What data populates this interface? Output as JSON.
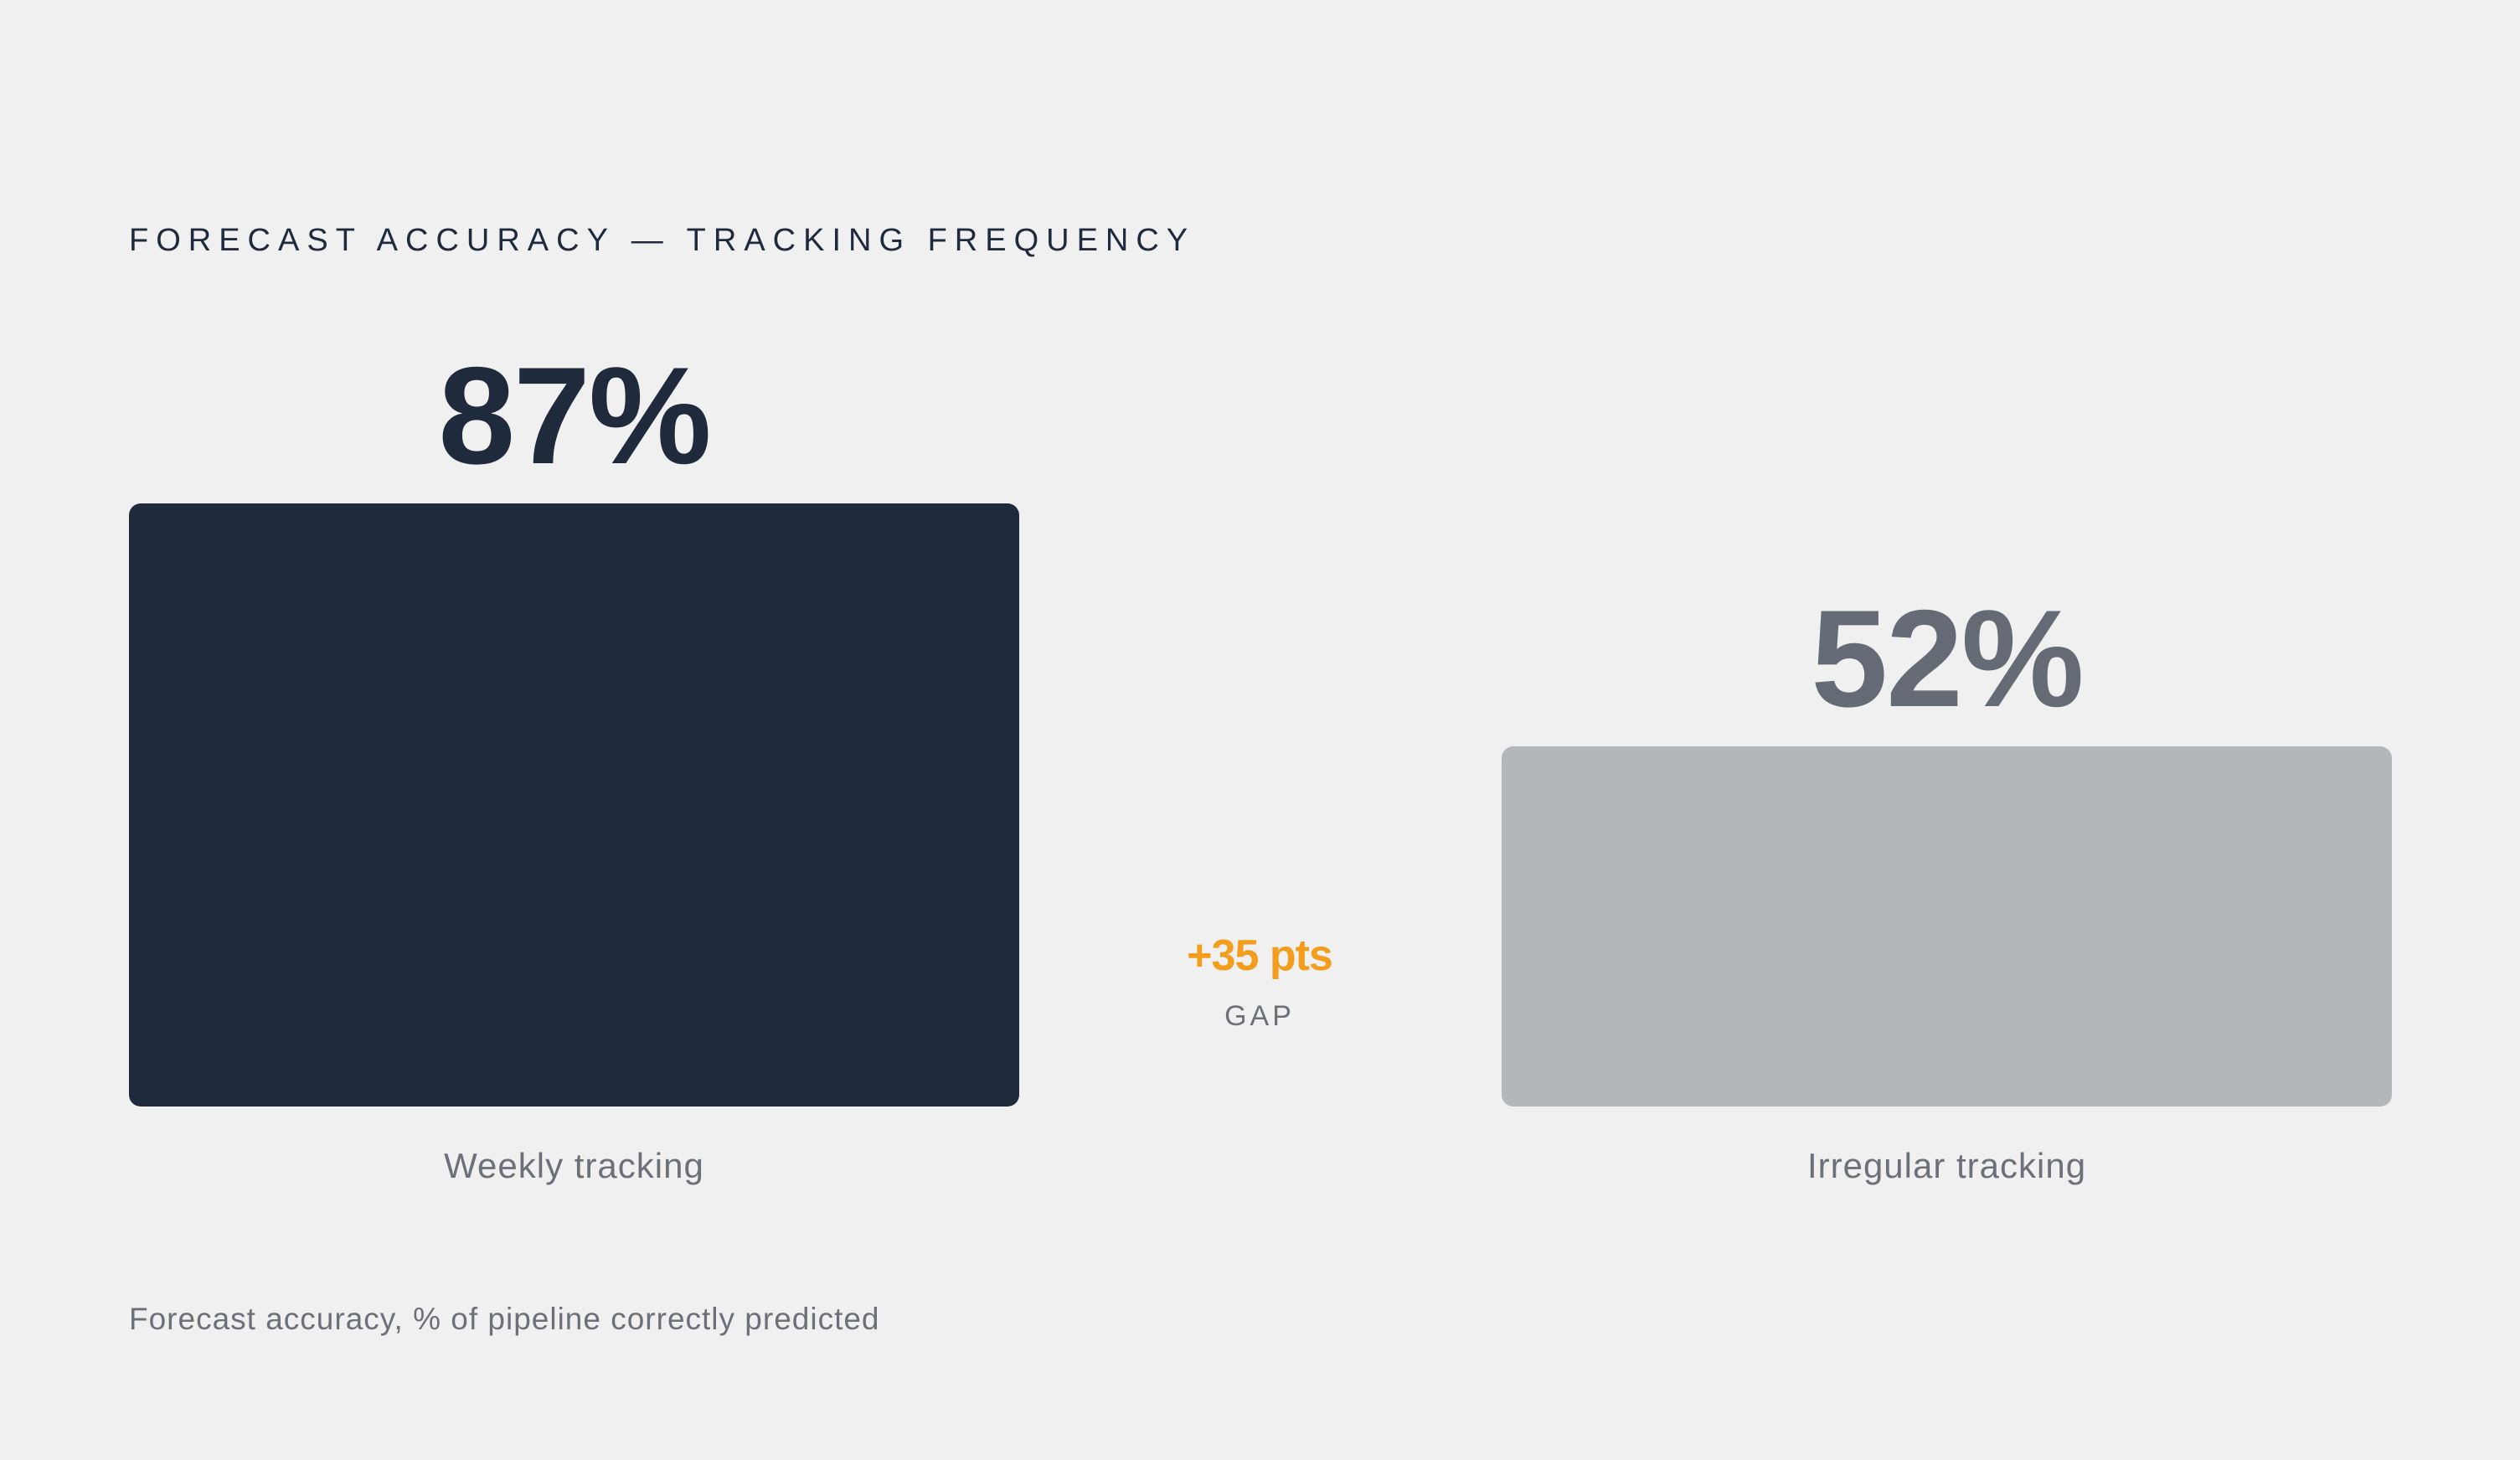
{
  "chart_data": {
    "type": "bar",
    "title": "FORECAST ACCURACY — TRACKING FREQUENCY",
    "categories": [
      "Weekly tracking",
      "Irregular tracking"
    ],
    "values": [
      87,
      52
    ],
    "value_labels": [
      "87%",
      "52%"
    ],
    "colors": [
      "#1f2a3c",
      "#b3b6bb"
    ],
    "value_label_colors": [
      "#1f2a3c",
      "#656b75"
    ],
    "gap": {
      "value": "+35 pts",
      "label": "GAP",
      "color": "#f29d1b"
    },
    "caption": "Forecast accuracy, % of pipeline correctly predicted"
  }
}
